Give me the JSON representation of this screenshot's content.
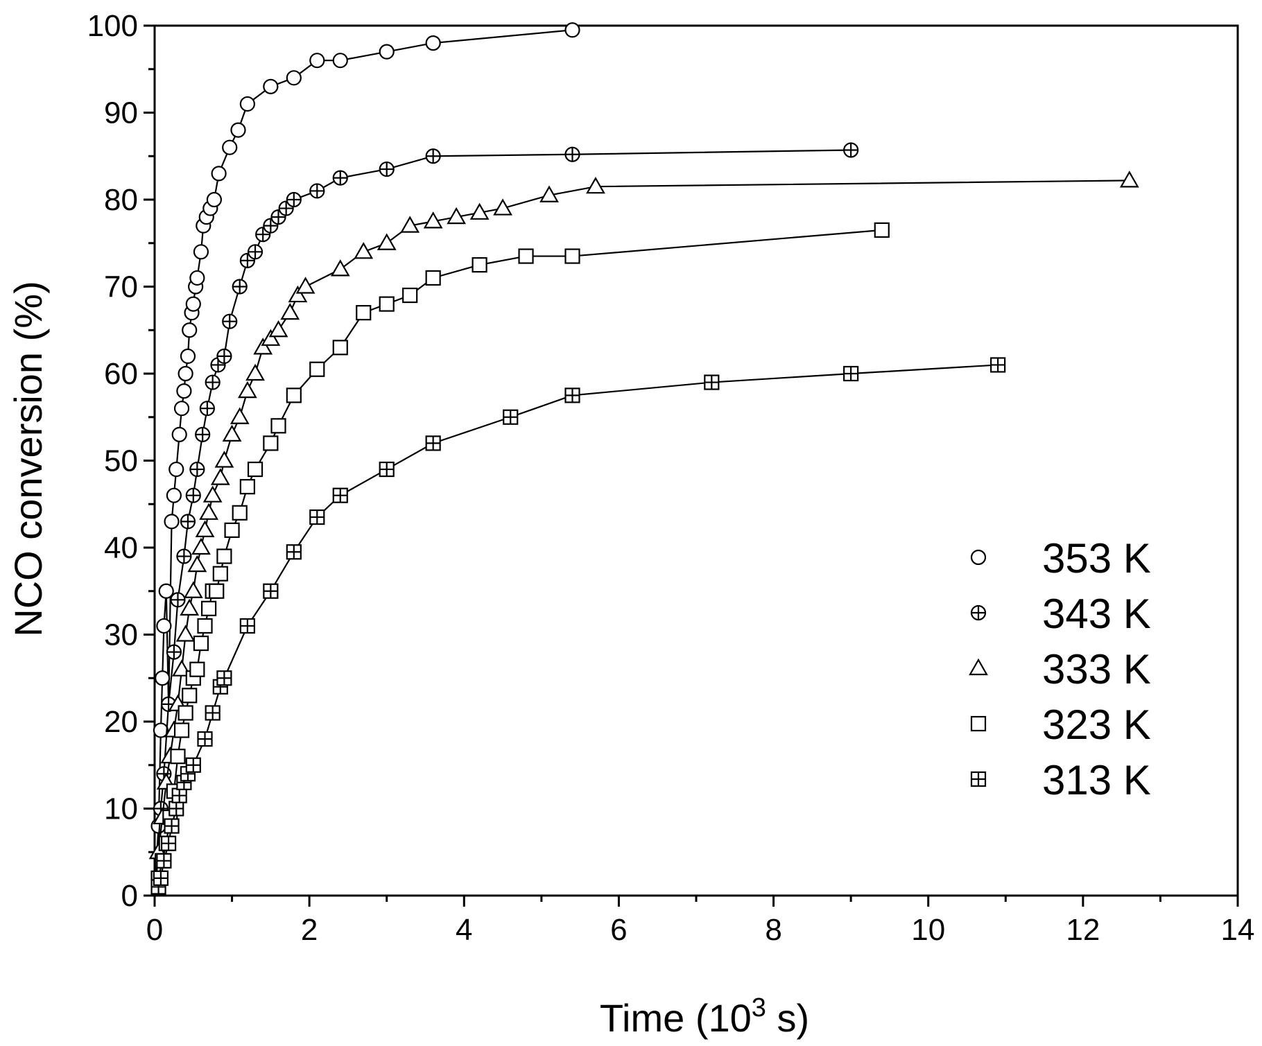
{
  "chart_data": {
    "type": "scatter",
    "title": "",
    "xlabel": "Time (10",
    "xlabel_superscript": "3",
    "xlabel_suffix": " s)",
    "ylabel": "NCO conversion (%)",
    "xlim": [
      0,
      14
    ],
    "ylim": [
      0,
      100
    ],
    "xticks": [
      0,
      2,
      4,
      6,
      8,
      10,
      12,
      14
    ],
    "yticks": [
      0,
      10,
      20,
      30,
      40,
      50,
      60,
      70,
      80,
      90,
      100
    ],
    "grid": false,
    "legend_position": "bottom-right",
    "series": [
      {
        "name": "353 K",
        "marker": "circle",
        "x": [
          0.05,
          0.08,
          0.1,
          0.12,
          0.15,
          0.18,
          0.22,
          0.25,
          0.28,
          0.32,
          0.35,
          0.38,
          0.4,
          0.43,
          0.45,
          0.48,
          0.5,
          0.53,
          0.55,
          0.6,
          0.63,
          0.67,
          0.72,
          0.77,
          0.83,
          0.97,
          1.08,
          1.2,
          1.5,
          1.8,
          2.1,
          2.4,
          3.0,
          3.6,
          5.4
        ],
        "y": [
          8,
          19,
          25,
          31,
          35,
          22,
          43,
          46,
          49,
          53,
          56,
          58,
          60,
          62,
          65,
          67,
          68,
          70,
          71,
          74,
          77,
          78,
          79,
          80,
          83,
          86,
          88,
          91,
          93,
          94,
          96,
          96,
          97,
          98,
          99.5
        ]
      },
      {
        "name": "343 K",
        "marker": "circle-plus",
        "x": [
          0.08,
          0.12,
          0.18,
          0.25,
          0.3,
          0.38,
          0.43,
          0.5,
          0.55,
          0.62,
          0.68,
          0.75,
          0.82,
          0.9,
          0.97,
          1.1,
          1.2,
          1.3,
          1.4,
          1.5,
          1.6,
          1.7,
          1.8,
          2.1,
          2.4,
          3.0,
          3.6,
          5.4,
          9.0
        ],
        "y": [
          10,
          14,
          22,
          28,
          34,
          39,
          43,
          46,
          49,
          53,
          56,
          59,
          61,
          62,
          66,
          70,
          73,
          74,
          76,
          77,
          78,
          79,
          80,
          81,
          82.5,
          83.5,
          85,
          85.2,
          85.7
        ]
      },
      {
        "name": "333 K",
        "marker": "triangle",
        "x": [
          0.05,
          0.1,
          0.15,
          0.2,
          0.25,
          0.3,
          0.35,
          0.4,
          0.45,
          0.5,
          0.55,
          0.6,
          0.65,
          0.7,
          0.75,
          0.85,
          0.9,
          1.0,
          1.1,
          1.2,
          1.3,
          1.4,
          1.5,
          1.6,
          1.75,
          1.85,
          1.95,
          2.4,
          2.7,
          3.0,
          3.3,
          3.6,
          3.9,
          4.2,
          4.5,
          5.1,
          5.7,
          12.6
        ],
        "y": [
          5,
          9,
          13,
          16,
          19,
          22,
          26,
          30,
          33,
          35,
          38,
          40,
          42,
          44,
          46,
          48,
          50,
          53,
          55,
          58,
          60,
          63,
          64,
          65,
          67,
          69,
          70,
          72,
          74,
          75,
          77,
          77.5,
          78,
          78.5,
          79,
          80.5,
          81.5,
          82.2
        ]
      },
      {
        "name": "323 K",
        "marker": "square",
        "x": [
          0.05,
          0.1,
          0.15,
          0.2,
          0.25,
          0.3,
          0.35,
          0.4,
          0.45,
          0.5,
          0.55,
          0.6,
          0.65,
          0.7,
          0.75,
          0.8,
          0.85,
          0.9,
          1.0,
          1.1,
          1.2,
          1.3,
          1.5,
          1.6,
          1.8,
          2.1,
          2.4,
          2.7,
          3.0,
          3.3,
          3.6,
          4.2,
          4.8,
          5.4,
          9.4
        ],
        "y": [
          2,
          4,
          6,
          9,
          12,
          16,
          19,
          21,
          23,
          25,
          26,
          29,
          31,
          33,
          35,
          35,
          37,
          39,
          42,
          44,
          47,
          49,
          52,
          54,
          57.5,
          60.5,
          63,
          67,
          68,
          69,
          71,
          72.5,
          73.5,
          73.5,
          76.5
        ]
      },
      {
        "name": "313 K",
        "marker": "square-plus",
        "x": [
          0.05,
          0.08,
          0.12,
          0.18,
          0.22,
          0.28,
          0.32,
          0.38,
          0.43,
          0.5,
          0.65,
          0.75,
          0.85,
          0.9,
          1.2,
          1.5,
          1.8,
          2.1,
          2.4,
          3.0,
          3.6,
          4.6,
          5.4,
          7.2,
          9.0,
          10.9
        ],
        "y": [
          1,
          2,
          4,
          6,
          8,
          10,
          11.5,
          13,
          14,
          15,
          18,
          21,
          24,
          25,
          31,
          35,
          39.5,
          43.5,
          46,
          49,
          52,
          55,
          57.5,
          59,
          60,
          61
        ]
      }
    ]
  }
}
